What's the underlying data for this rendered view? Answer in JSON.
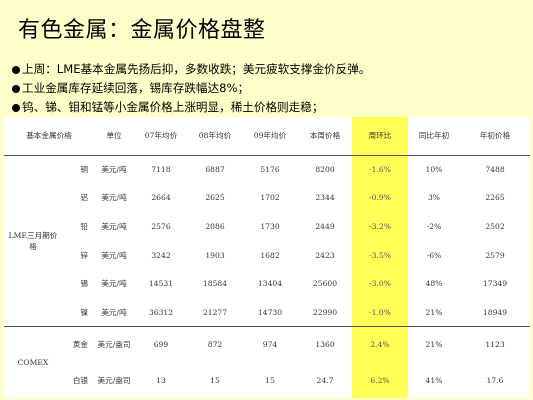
{
  "title": "有色金属：金属价格盘整",
  "bullets": [
    "上周：LME基本金属先扬后抑，多数收跌；美元疲软支撑金价反弹。",
    "工业金属库存延续回落，锡库存跌幅达8%；",
    "钨、锑、钼和锰等小金属价格上涨明显，稀土价格则走稳；"
  ],
  "table": {
    "headers": [
      "基本金属价格",
      "单位",
      "07年均价",
      "08年均价",
      "09年均价",
      "本周价格",
      "周环比",
      "同比年初",
      "年初价格"
    ],
    "highlight_color": "#ffff55",
    "groups": [
      {
        "name": "LME三月期价格",
        "rows": [
          {
            "metal": "铜",
            "unit": "美元/吨",
            "p07": "7118",
            "p08": "6887",
            "p09": "5176",
            "week": "8200",
            "wow": "-1.6%",
            "yoy": "10%",
            "start": "7488"
          },
          {
            "metal": "铝",
            "unit": "美元/吨",
            "p07": "2664",
            "p08": "2625",
            "p09": "1702",
            "week": "2344",
            "wow": "-0.9%",
            "yoy": "3%",
            "start": "2265"
          },
          {
            "metal": "铅",
            "unit": "美元/吨",
            "p07": "2576",
            "p08": "2086",
            "p09": "1730",
            "week": "2449",
            "wow": "-3.2%",
            "yoy": "-2%",
            "start": "2502"
          },
          {
            "metal": "锌",
            "unit": "美元/吨",
            "p07": "3242",
            "p08": "1903",
            "p09": "1682",
            "week": "2423",
            "wow": "-3.5%",
            "yoy": "-6%",
            "start": "2579"
          },
          {
            "metal": "锡",
            "unit": "美元/吨",
            "p07": "14531",
            "p08": "18584",
            "p09": "13404",
            "week": "25600",
            "wow": "-3.0%",
            "yoy": "48%",
            "start": "17349"
          },
          {
            "metal": "镍",
            "unit": "美元/吨",
            "p07": "36312",
            "p08": "21277",
            "p09": "14730",
            "week": "22990",
            "wow": "-1.0%",
            "yoy": "21%",
            "start": "18949"
          }
        ]
      },
      {
        "name": "COMEX",
        "rows": [
          {
            "metal": "黄金",
            "unit": "美元/盎司",
            "p07": "699",
            "p08": "872",
            "p09": "974",
            "week": "1360",
            "wow": "2.4%",
            "yoy": "21%",
            "start": "1123"
          },
          {
            "metal": "白银",
            "unit": "美元/盎司",
            "p07": "13",
            "p08": "15",
            "p09": "15",
            "week": "24.7",
            "wow": "6.2%",
            "yoy": "41%",
            "start": "17.6"
          }
        ]
      }
    ]
  }
}
